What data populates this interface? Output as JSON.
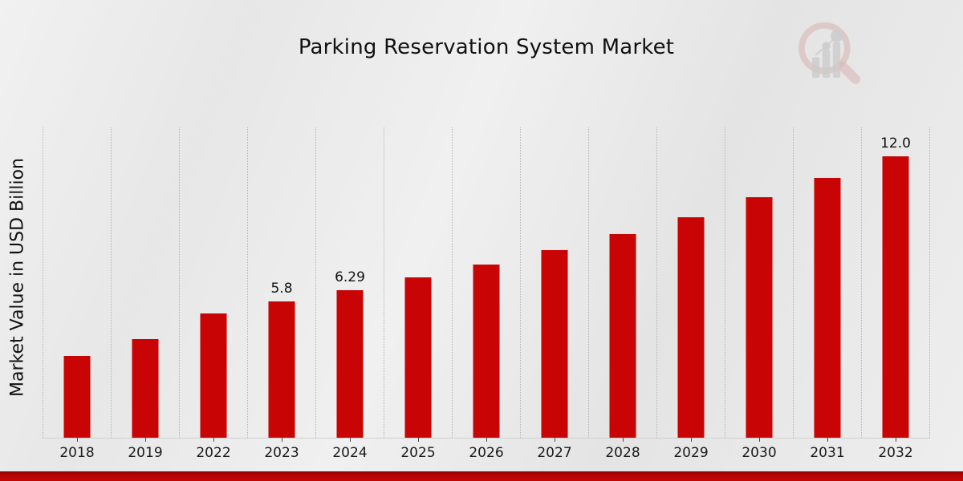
{
  "title": "Parking Reservation System Market",
  "y_axis_label": "Market Value in USD Billion",
  "logo": {
    "name": "market-research-magnifier-chart-logo"
  },
  "colors": {
    "bar": "#c90404",
    "grid": "#b5b5b5",
    "background": "#e9e9e9",
    "bottom_bar": "#b00303",
    "text": "#111111"
  },
  "chart_data": {
    "type": "bar",
    "title": "Parking Reservation System Market",
    "xlabel": "",
    "ylabel": "Market Value in USD Billion",
    "categories": [
      "2018",
      "2019",
      "2022",
      "2023",
      "2024",
      "2025",
      "2026",
      "2027",
      "2028",
      "2029",
      "2030",
      "2031",
      "2032"
    ],
    "values": [
      3.5,
      4.2,
      5.3,
      5.8,
      6.29,
      6.85,
      7.4,
      8.0,
      8.7,
      9.4,
      10.25,
      11.1,
      12.0
    ],
    "bar_labels": [
      "",
      "",
      "",
      "5.8",
      "6.29",
      "",
      "",
      "",
      "",
      "",
      "",
      "",
      "12.0"
    ],
    "ylim": [
      0,
      13.24
    ],
    "grid": "vertical dotted gridlines between categories",
    "legend": "none",
    "bar_color": "#c90404"
  }
}
